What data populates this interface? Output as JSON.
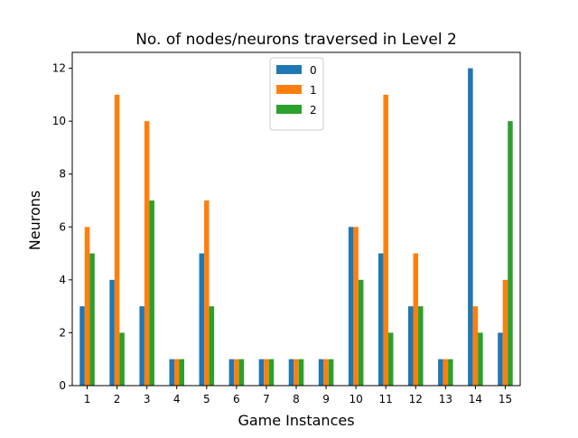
{
  "chart_data": {
    "type": "bar",
    "title": "No. of nodes/neurons traversed in Level 2",
    "xlabel": "Game Instances",
    "ylabel": "Neurons",
    "categories": [
      "1",
      "2",
      "3",
      "4",
      "5",
      "6",
      "7",
      "8",
      "9",
      "10",
      "11",
      "12",
      "13",
      "14",
      "15"
    ],
    "series": [
      {
        "name": "0",
        "color": "#1f77b4",
        "values": [
          3,
          4,
          3,
          1,
          5,
          1,
          1,
          1,
          1,
          6,
          5,
          3,
          1,
          12,
          2
        ]
      },
      {
        "name": "1",
        "color": "#ff7f0e",
        "values": [
          6,
          11,
          10,
          1,
          7,
          1,
          1,
          1,
          1,
          6,
          11,
          5,
          1,
          3,
          4
        ]
      },
      {
        "name": "2",
        "color": "#2ca02c",
        "values": [
          5,
          2,
          7,
          1,
          3,
          1,
          1,
          1,
          1,
          4,
          2,
          3,
          1,
          2,
          10
        ]
      }
    ],
    "ylim": [
      0,
      12.6
    ],
    "yticks": [
      0,
      2,
      4,
      6,
      8,
      10,
      12
    ],
    "grid": false,
    "legend_position": "top-center"
  }
}
